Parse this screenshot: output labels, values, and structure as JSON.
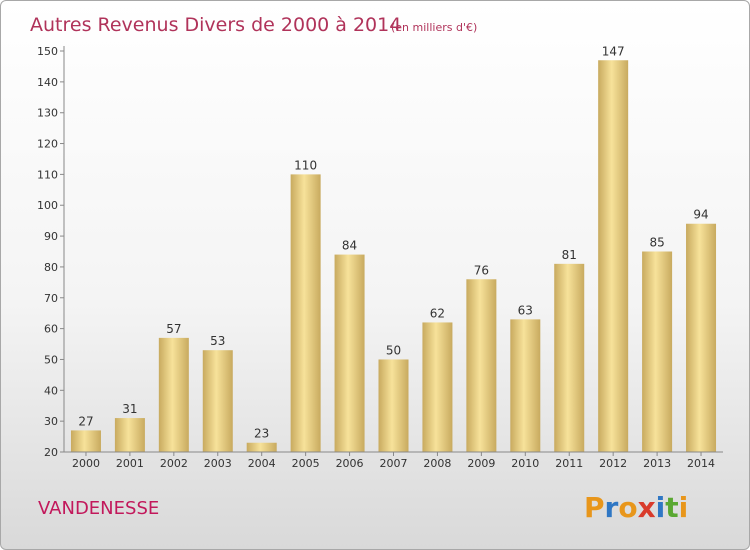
{
  "chart_data": {
    "type": "bar",
    "title": "Autres Revenus Divers de 2000 à 2014",
    "subtitle": "(en milliers d'€)",
    "categories": [
      "2000",
      "2001",
      "2002",
      "2003",
      "2004",
      "2005",
      "2006",
      "2007",
      "2008",
      "2009",
      "2010",
      "2011",
      "2012",
      "2013",
      "2014"
    ],
    "values": [
      27,
      31,
      57,
      53,
      23,
      110,
      84,
      50,
      62,
      76,
      63,
      81,
      147,
      85,
      94
    ],
    "ylim": [
      20,
      150
    ],
    "yticks": [
      20,
      30,
      40,
      50,
      60,
      70,
      80,
      90,
      100,
      110,
      120,
      130,
      140,
      150
    ],
    "grid": false,
    "legend": "none",
    "bar_color_light": "#f7e29a",
    "bar_color_dark": "#c8aa5f"
  },
  "commune": "VANDENESSE",
  "logo": {
    "letters": [
      "P",
      "r",
      "o",
      "x",
      "i",
      "t",
      "i"
    ],
    "colors": [
      "#e8961b",
      "#2f77c4",
      "#e8961b",
      "#d93b2b",
      "#2f77c4",
      "#5aa832",
      "#e8961b"
    ]
  }
}
